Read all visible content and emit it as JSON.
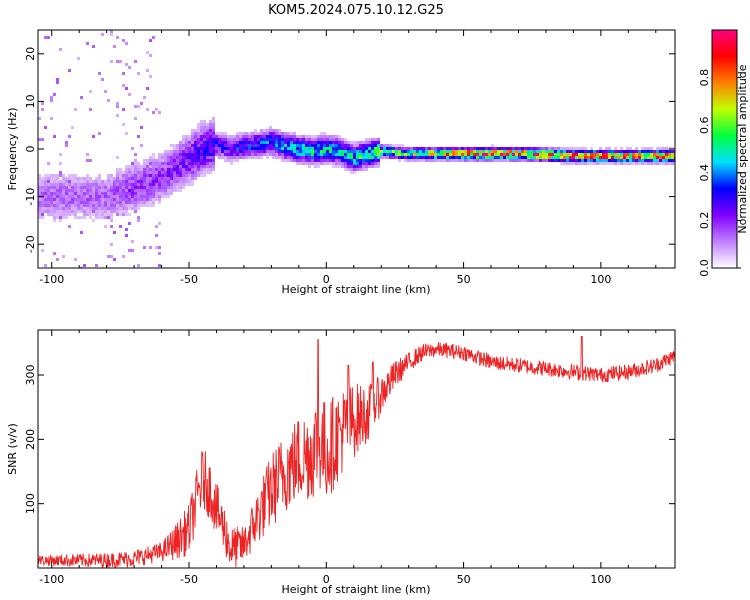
{
  "title": "KOM5.2024.075.10.12.G25",
  "chart_data": [
    {
      "type": "heatmap",
      "xlabel": "Height of straight line (km)",
      "ylabel": "Frequency (Hz)",
      "xlim": [
        -105,
        127
      ],
      "ylim": [
        -25,
        25
      ],
      "xticks": [
        -100,
        -50,
        0,
        50,
        100
      ],
      "xtick_labels": [
        "-100",
        "-50",
        "0",
        "50",
        "100"
      ],
      "yticks": [
        20,
        10,
        0,
        -10,
        -20
      ],
      "ytick_labels": [
        "20",
        "10",
        "0",
        "-10",
        "-20"
      ],
      "colorbar": {
        "label": "Normalized spectral amplitude",
        "range": [
          0,
          1
        ],
        "ticks": [
          0.0,
          0.2,
          0.4,
          0.6,
          0.8
        ],
        "tick_labels": [
          "0.0",
          "0.2",
          "0.4",
          "0.6",
          "0.8"
        ],
        "colormap": [
          "#ffffff",
          "#c080ff",
          "#8000ff",
          "#0000ff",
          "#00e0ff",
          "#00ff40",
          "#c0ff00",
          "#ff8000",
          "#ff0000",
          "#ff0080"
        ]
      },
      "ridge": {
        "x": [
          -80,
          -70,
          -60,
          -50,
          -45,
          -40,
          -35,
          -30,
          -25,
          -20,
          -15,
          -10,
          -5,
          0,
          5,
          10,
          15,
          20,
          30,
          50,
          70,
          90,
          110,
          127
        ],
        "y": [
          -10,
          -8,
          -6,
          -2,
          0,
          1,
          0,
          0.5,
          1,
          1.5,
          0.5,
          0,
          -0.5,
          0,
          -0.5,
          -2,
          -1,
          -0.5,
          -1,
          -1,
          -1,
          -1.5,
          -1.5,
          -1.5
        ],
        "amplitude": [
          0.15,
          0.2,
          0.2,
          0.25,
          0.3,
          0.3,
          0.3,
          0.35,
          0.35,
          0.4,
          0.45,
          0.5,
          0.5,
          0.5,
          0.5,
          0.5,
          0.55,
          0.6,
          0.6,
          0.9,
          0.9,
          0.9,
          0.9,
          0.9
        ]
      }
    },
    {
      "type": "line",
      "xlabel": "Height of straight line (km)",
      "ylabel": "SNR (v/v)",
      "xlim": [
        -105,
        127
      ],
      "ylim": [
        0,
        370
      ],
      "xticks": [
        -100,
        -50,
        0,
        50,
        100
      ],
      "xtick_labels": [
        "-100",
        "-50",
        "0",
        "50",
        "100"
      ],
      "yticks": [
        100,
        200,
        300
      ],
      "ytick_labels": [
        "100",
        "200",
        "300"
      ],
      "color": "#ee2222",
      "envelope": {
        "x": [
          -105,
          -80,
          -70,
          -60,
          -55,
          -50,
          -47,
          -45,
          -42,
          -40,
          -37,
          -35,
          -30,
          -25,
          -20,
          -15,
          -10,
          -5,
          -3,
          0,
          5,
          10,
          15,
          20,
          25,
          30,
          35,
          40,
          50,
          60,
          70,
          80,
          90,
          100,
          110,
          120,
          127
        ],
        "y": [
          12,
          12,
          15,
          25,
          40,
          60,
          110,
          140,
          120,
          90,
          60,
          30,
          35,
          80,
          120,
          150,
          170,
          180,
          200,
          180,
          210,
          230,
          240,
          270,
          300,
          320,
          335,
          340,
          335,
          320,
          315,
          310,
          305,
          300,
          305,
          315,
          330
        ]
      },
      "noise_amplitude": {
        "x": [
          -105,
          -60,
          -50,
          -45,
          -35,
          -30,
          -20,
          -10,
          0,
          10,
          20,
          30,
          40,
          127
        ],
        "y": [
          8,
          15,
          40,
          50,
          35,
          30,
          60,
          70,
          80,
          60,
          30,
          15,
          12,
          12
        ]
      },
      "peaks": {
        "x": [
          -3,
          8,
          17,
          93
        ],
        "y": [
          355,
          315,
          320,
          360
        ]
      }
    }
  ]
}
